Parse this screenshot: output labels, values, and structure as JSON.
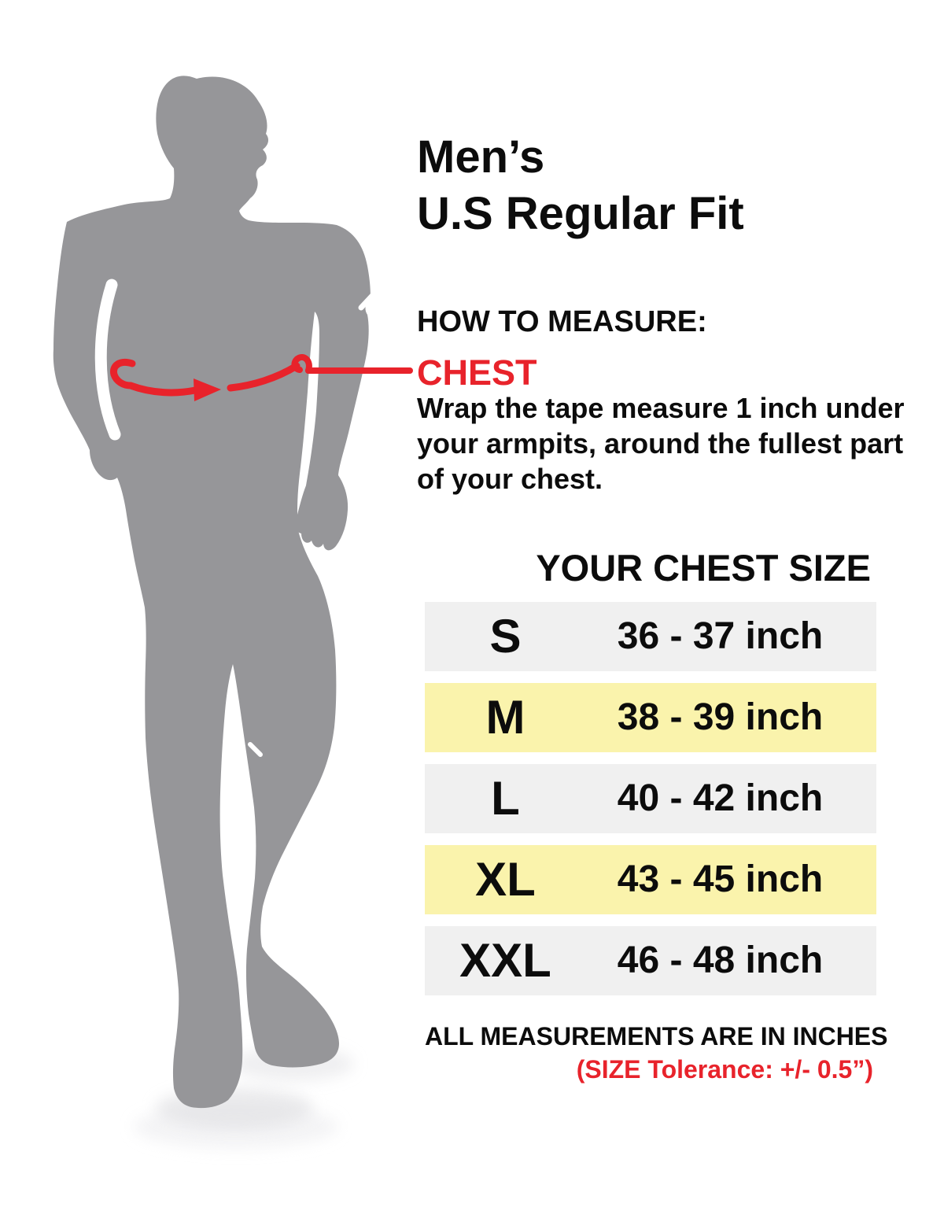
{
  "title": {
    "line1": "Men’s",
    "line2": "U.S Regular Fit"
  },
  "how_to_measure": {
    "heading": "HOW TO MEASURE:",
    "measure_point": "CHEST",
    "instruction_lines": [
      "Wrap the tape measure 1 inch under",
      "your armpits, around the fullest part",
      "of your chest."
    ]
  },
  "size_table": {
    "header": "YOUR CHEST SIZE",
    "rows": [
      {
        "size": "S",
        "range": "36 - 37 inch",
        "highlighted": false
      },
      {
        "size": "M",
        "range": "38 - 39 inch",
        "highlighted": true
      },
      {
        "size": "L",
        "range": "40 - 42 inch",
        "highlighted": false
      },
      {
        "size": "XL",
        "range": "43 - 45 inch",
        "highlighted": true
      },
      {
        "size": "XXL",
        "range": "46 - 48 inch",
        "highlighted": false
      }
    ]
  },
  "footnote": {
    "line1": "ALL MEASUREMENTS ARE IN INCHES",
    "line2": "(SIZE Tolerance: +/- 0.5”)"
  },
  "colors": {
    "accent_red": "#e8232b",
    "silhouette_gray": "#969699",
    "row_gray": "#f0f0f0",
    "row_highlight_yellow": "#faf3ac",
    "text_black": "#0c0c0c"
  },
  "icons": {
    "silhouette": "standing-man-silhouette",
    "tape_arrow": "chest-tape-measure-arrow"
  }
}
